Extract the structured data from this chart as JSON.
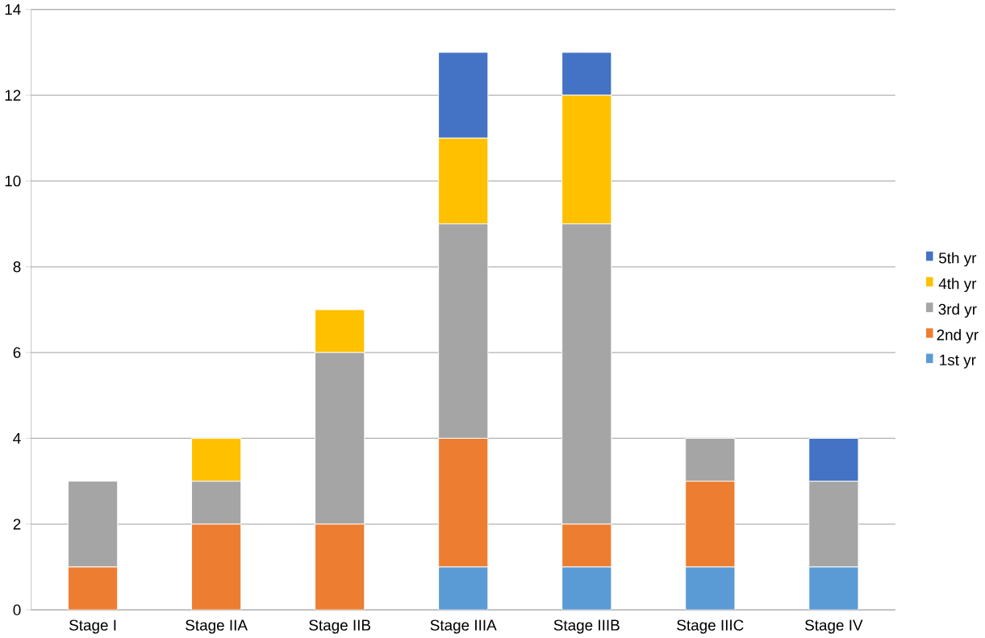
{
  "chart_data": {
    "type": "bar",
    "stacked": true,
    "categories": [
      "Stage I",
      "Stage IIA",
      "Stage IIB",
      "Stage IIIA",
      "Stage IIIB",
      "Stage IIIC",
      "Stage IV"
    ],
    "series": [
      {
        "name": "1st yr",
        "color": "#5b9bd5",
        "values": [
          0,
          0,
          0,
          1,
          1,
          1,
          1
        ]
      },
      {
        "name": "2nd yr",
        "color": "#ed7d31",
        "values": [
          1,
          2,
          2,
          3,
          1,
          2,
          0
        ]
      },
      {
        "name": "3rd yr",
        "color": "#a5a5a5",
        "values": [
          2,
          1,
          4,
          5,
          7,
          1,
          2
        ]
      },
      {
        "name": "4th yr",
        "color": "#ffc000",
        "values": [
          0,
          1,
          1,
          2,
          3,
          0,
          0
        ]
      },
      {
        "name": "5th yr",
        "color": "#4472c4",
        "values": [
          0,
          0,
          0,
          2,
          1,
          0,
          1
        ]
      }
    ],
    "ylim": [
      0,
      14
    ],
    "yticks": [
      0,
      2,
      4,
      6,
      8,
      10,
      12,
      14
    ],
    "grid": "y",
    "legend": "right"
  }
}
